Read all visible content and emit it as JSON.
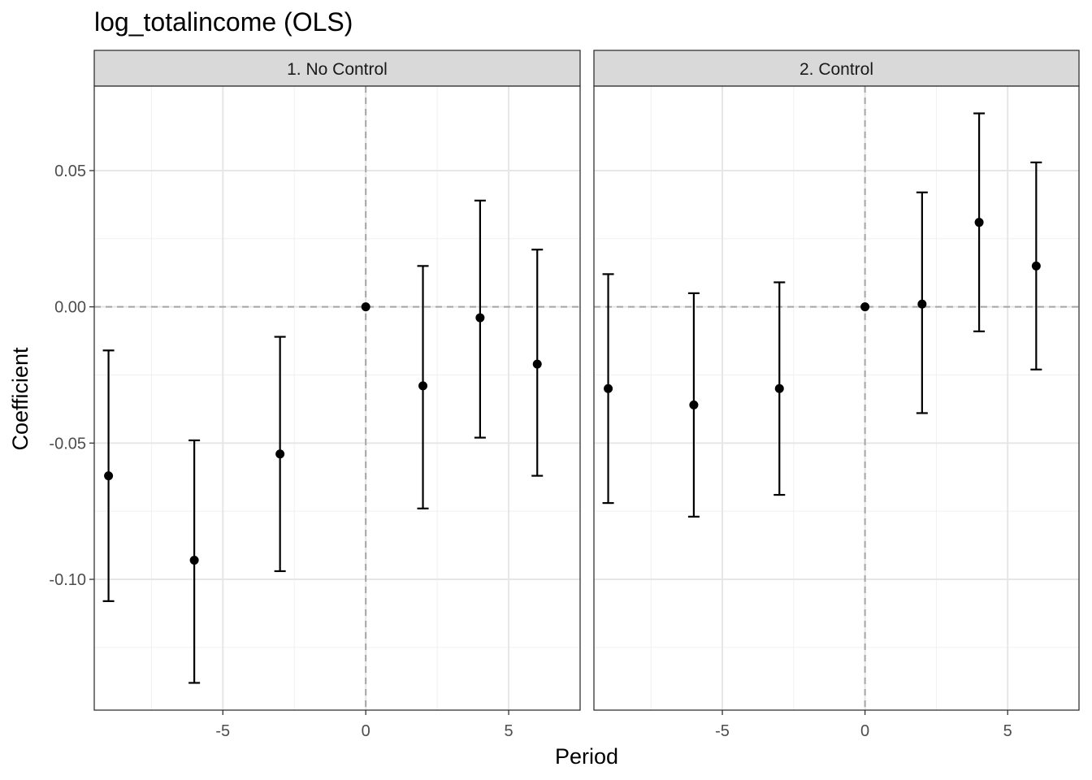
{
  "chart_data": {
    "type": "scatter",
    "title": "log_totalincome (OLS)",
    "xlabel": "Period",
    "ylabel": "Coefficient",
    "xlim": [
      -9.5,
      7.5
    ],
    "ylim": [
      -0.148,
      0.081
    ],
    "x_ticks": [
      -5,
      0,
      5
    ],
    "x_tick_labels": [
      "-5",
      "0",
      "5"
    ],
    "y_ticks": [
      -0.1,
      -0.05,
      0.0,
      0.05
    ],
    "y_tick_labels": [
      "-0.10",
      "-0.05",
      "0.00",
      "0.05"
    ],
    "grid": true,
    "reference_lines": {
      "x": 0,
      "y": 0,
      "style": "dashed"
    },
    "facets": [
      {
        "label": "1. No Control",
        "points": [
          {
            "x": -9,
            "y": -0.062,
            "ci_low": -0.108,
            "ci_high": -0.016
          },
          {
            "x": -6,
            "y": -0.093,
            "ci_low": -0.138,
            "ci_high": -0.049
          },
          {
            "x": -3,
            "y": -0.054,
            "ci_low": -0.097,
            "ci_high": -0.011
          },
          {
            "x": 0,
            "y": 0.0,
            "ci_low": 0.0,
            "ci_high": 0.0
          },
          {
            "x": 2,
            "y": -0.029,
            "ci_low": -0.074,
            "ci_high": 0.015
          },
          {
            "x": 4,
            "y": -0.004,
            "ci_low": -0.048,
            "ci_high": 0.039
          },
          {
            "x": 6,
            "y": -0.021,
            "ci_low": -0.062,
            "ci_high": 0.021
          }
        ]
      },
      {
        "label": "2. Control",
        "points": [
          {
            "x": -9,
            "y": -0.03,
            "ci_low": -0.072,
            "ci_high": 0.012
          },
          {
            "x": -6,
            "y": -0.036,
            "ci_low": -0.077,
            "ci_high": 0.005
          },
          {
            "x": -3,
            "y": -0.03,
            "ci_low": -0.069,
            "ci_high": 0.009
          },
          {
            "x": 0,
            "y": 0.0,
            "ci_low": 0.0,
            "ci_high": 0.0
          },
          {
            "x": 2,
            "y": 0.001,
            "ci_low": -0.039,
            "ci_high": 0.042
          },
          {
            "x": 4,
            "y": 0.031,
            "ci_low": -0.009,
            "ci_high": 0.071
          },
          {
            "x": 6,
            "y": 0.015,
            "ci_low": -0.023,
            "ci_high": 0.053
          }
        ]
      }
    ]
  }
}
